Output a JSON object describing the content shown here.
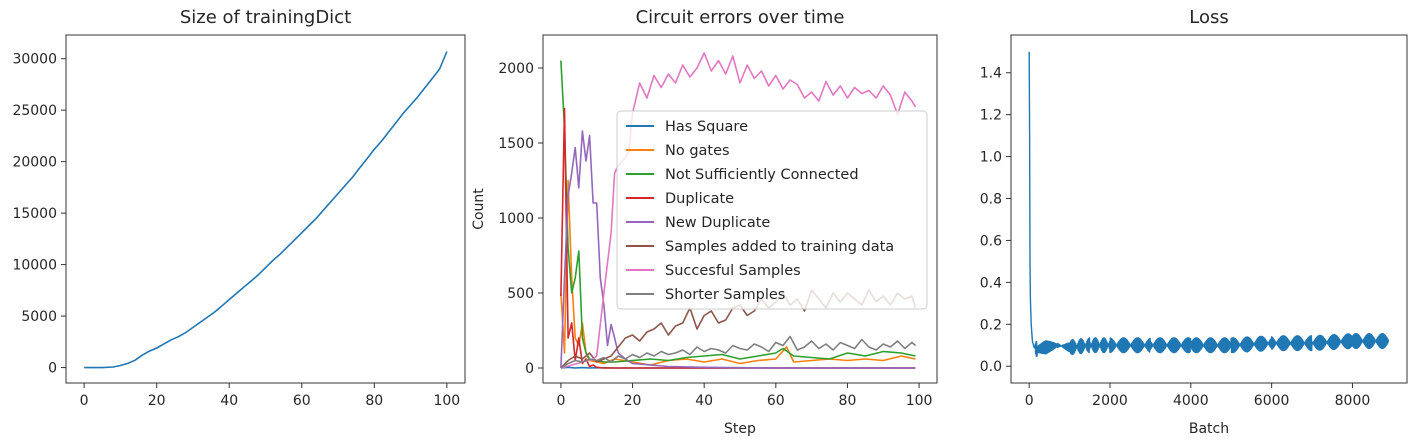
{
  "chart_data": [
    {
      "type": "line",
      "title": "Size of trainingDict",
      "xlabel": "",
      "ylabel": "",
      "xlim": [
        -5,
        105
      ],
      "ylim": [
        -1500,
        32300
      ],
      "xticks": [
        0,
        20,
        40,
        60,
        80,
        100
      ],
      "yticks": [
        0,
        5000,
        10000,
        15000,
        20000,
        25000,
        30000
      ],
      "series": [
        {
          "color": "#1f77b4",
          "x": [
            0,
            5,
            8,
            10,
            12,
            14,
            16,
            18,
            20,
            22,
            24,
            26,
            28,
            30,
            32,
            34,
            36,
            38,
            40,
            42,
            44,
            46,
            48,
            50,
            52,
            54,
            56,
            58,
            60,
            62,
            64,
            66,
            68,
            70,
            72,
            74,
            76,
            78,
            80,
            82,
            84,
            86,
            88,
            90,
            92,
            94,
            96,
            98,
            100
          ],
          "y": [
            0,
            0,
            50,
            200,
            400,
            700,
            1200,
            1600,
            1900,
            2300,
            2700,
            3000,
            3400,
            3900,
            4400,
            4900,
            5400,
            6000,
            6600,
            7200,
            7800,
            8400,
            9000,
            9700,
            10400,
            11000,
            11700,
            12400,
            13100,
            13800,
            14500,
            15300,
            16100,
            16900,
            17700,
            18500,
            19400,
            20300,
            21200,
            22000,
            22900,
            23800,
            24700,
            25500,
            26300,
            27200,
            28100,
            29000,
            30700
          ]
        }
      ]
    },
    {
      "type": "line",
      "title": "Circuit errors over time",
      "xlabel": "Step",
      "ylabel": "Count",
      "xlim": [
        -5,
        105
      ],
      "ylim": [
        -100,
        2220
      ],
      "xticks": [
        0,
        20,
        40,
        60,
        80,
        100
      ],
      "yticks": [
        0,
        500,
        1000,
        1500,
        2000
      ],
      "legend_position": "center-right",
      "series": [
        {
          "name": "Has Square",
          "color": "#1f77b4",
          "x": [
            0,
            2,
            4,
            6,
            8,
            10,
            15,
            20,
            30,
            40,
            50,
            60,
            70,
            80,
            90,
            99
          ],
          "y": [
            0,
            5,
            0,
            3,
            0,
            2,
            0,
            0,
            0,
            0,
            0,
            0,
            0,
            0,
            0,
            0
          ]
        },
        {
          "name": "No gates",
          "color": "#ff7f0e",
          "x": [
            0,
            1,
            2,
            3,
            4,
            5,
            6,
            7,
            8,
            10,
            12,
            15,
            20,
            25,
            30,
            35,
            40,
            45,
            50,
            55,
            60,
            63,
            65,
            70,
            75,
            80,
            85,
            90,
            95,
            99
          ],
          "y": [
            500,
            100,
            1250,
            600,
            200,
            150,
            300,
            100,
            50,
            40,
            30,
            60,
            40,
            20,
            50,
            60,
            40,
            60,
            30,
            50,
            60,
            140,
            40,
            50,
            60,
            50,
            60,
            50,
            80,
            60
          ]
        },
        {
          "name": "Not Sufficiently Connected",
          "color": "#2ca02c",
          "x": [
            0,
            1,
            2,
            3,
            4,
            5,
            6,
            7,
            8,
            10,
            12,
            15,
            20,
            25,
            30,
            35,
            40,
            45,
            50,
            55,
            60,
            62,
            65,
            70,
            75,
            80,
            85,
            90,
            95,
            99
          ],
          "y": [
            2050,
            1600,
            800,
            500,
            600,
            780,
            200,
            100,
            60,
            50,
            40,
            40,
            50,
            60,
            50,
            70,
            80,
            90,
            60,
            80,
            100,
            130,
            80,
            70,
            60,
            100,
            80,
            110,
            100,
            80
          ]
        },
        {
          "name": "Duplicate",
          "color": "#d62728",
          "x": [
            0,
            1,
            2,
            3,
            4,
            5,
            6,
            7,
            8,
            9,
            10,
            12,
            15,
            20,
            30,
            50,
            99
          ],
          "y": [
            480,
            1730,
            200,
            300,
            50,
            200,
            30,
            60,
            10,
            20,
            5,
            0,
            0,
            0,
            0,
            0,
            0
          ]
        },
        {
          "name": "New Duplicate",
          "color": "#9467bd",
          "x": [
            0,
            1,
            2,
            3,
            4,
            5,
            6,
            7,
            8,
            9,
            10,
            11,
            12,
            13,
            14,
            15,
            16,
            18,
            20,
            25,
            30,
            40,
            60,
            80,
            99
          ],
          "y": [
            0,
            600,
            1150,
            1300,
            1470,
            1200,
            1580,
            1380,
            1550,
            1100,
            1100,
            600,
            420,
            150,
            290,
            200,
            100,
            60,
            30,
            20,
            10,
            5,
            0,
            0,
            0
          ]
        },
        {
          "name": "Samples added to training data",
          "color": "#8c564b",
          "x": [
            0,
            2,
            4,
            6,
            8,
            10,
            12,
            14,
            16,
            18,
            20,
            22,
            24,
            26,
            28,
            30,
            32,
            34,
            36,
            38,
            40,
            42,
            44,
            46,
            48,
            50,
            52,
            54,
            56,
            58,
            60,
            62,
            64,
            66,
            68,
            70,
            72,
            74,
            76,
            78,
            80,
            82,
            84,
            86,
            88,
            90,
            92,
            94,
            96,
            98,
            99
          ],
          "y": [
            0,
            50,
            80,
            60,
            100,
            40,
            60,
            80,
            140,
            200,
            220,
            180,
            240,
            260,
            300,
            220,
            280,
            300,
            400,
            260,
            350,
            380,
            300,
            320,
            400,
            420,
            350,
            380,
            460,
            400,
            440,
            500,
            420,
            460,
            380,
            520,
            460,
            400,
            500,
            440,
            500,
            460,
            420,
            520,
            440,
            480,
            420,
            500,
            460,
            480,
            400
          ]
        },
        {
          "name": "Succesful Samples",
          "color": "#e377c2",
          "x": [
            0,
            3,
            6,
            9,
            10,
            12,
            14,
            15,
            16,
            18,
            19,
            20,
            22,
            24,
            26,
            28,
            30,
            32,
            34,
            36,
            38,
            40,
            42,
            44,
            46,
            48,
            50,
            52,
            54,
            56,
            58,
            60,
            62,
            64,
            66,
            68,
            70,
            72,
            74,
            76,
            78,
            80,
            82,
            84,
            86,
            88,
            90,
            92,
            94,
            96,
            98,
            99
          ],
          "y": [
            0,
            20,
            40,
            60,
            80,
            500,
            900,
            1300,
            1350,
            1400,
            1450,
            1700,
            1900,
            1800,
            1950,
            1870,
            1960,
            1900,
            2020,
            1940,
            2000,
            2100,
            1980,
            2050,
            1960,
            2080,
            1900,
            2020,
            1930,
            1980,
            1880,
            1950,
            1860,
            1920,
            1890,
            1800,
            1840,
            1780,
            1910,
            1820,
            1880,
            1800,
            1870,
            1830,
            1850,
            1800,
            1880,
            1820,
            1690,
            1840,
            1780,
            1740
          ]
        },
        {
          "name": "Shorter Samples",
          "color": "#7f7f7f",
          "x": [
            0,
            2,
            4,
            6,
            8,
            10,
            12,
            14,
            16,
            18,
            20,
            22,
            24,
            26,
            28,
            30,
            32,
            34,
            36,
            38,
            40,
            42,
            44,
            46,
            48,
            50,
            52,
            54,
            56,
            58,
            60,
            62,
            64,
            66,
            68,
            70,
            72,
            74,
            76,
            78,
            80,
            82,
            84,
            86,
            88,
            90,
            92,
            94,
            96,
            98,
            99
          ],
          "y": [
            0,
            30,
            50,
            40,
            60,
            50,
            70,
            40,
            80,
            60,
            90,
            70,
            100,
            80,
            110,
            90,
            100,
            120,
            90,
            140,
            110,
            130,
            120,
            100,
            150,
            130,
            120,
            160,
            140,
            110,
            170,
            150,
            210,
            120,
            140,
            180,
            130,
            160,
            120,
            170,
            150,
            130,
            190,
            140,
            120,
            160,
            140,
            180,
            130,
            170,
            150
          ]
        }
      ]
    },
    {
      "type": "line",
      "title": "Loss",
      "xlabel": "Batch",
      "ylabel": "",
      "xlim": [
        -450,
        9350
      ],
      "ylim": [
        -0.08,
        1.58
      ],
      "xticks": [
        0,
        2000,
        4000,
        6000,
        8000
      ],
      "xtick_labels": [
        "0",
        "2000",
        "4000",
        "6000",
        "8000"
      ],
      "yticks": [
        0.0,
        0.2,
        0.4,
        0.6,
        0.8,
        1.0,
        1.2,
        1.4
      ],
      "ytick_labels": [
        "0.0",
        "0.2",
        "0.4",
        "0.6",
        "0.8",
        "1.0",
        "1.2",
        "1.4"
      ],
      "series": [
        {
          "color": "#1f77b4",
          "x": [
            0,
            10,
            20,
            30,
            50,
            80,
            120,
            200,
            400,
            700,
            1000,
            1500,
            2000,
            3000,
            4000,
            5000,
            6000,
            7000,
            8000,
            8900
          ],
          "y": [
            1.5,
            1.1,
            0.5,
            0.32,
            0.2,
            0.12,
            0.09,
            0.08,
            0.09,
            0.1,
            0.09,
            0.1,
            0.1,
            0.1,
            0.1,
            0.1,
            0.11,
            0.11,
            0.12,
            0.12
          ],
          "noise_band": 0.035
        }
      ]
    }
  ]
}
